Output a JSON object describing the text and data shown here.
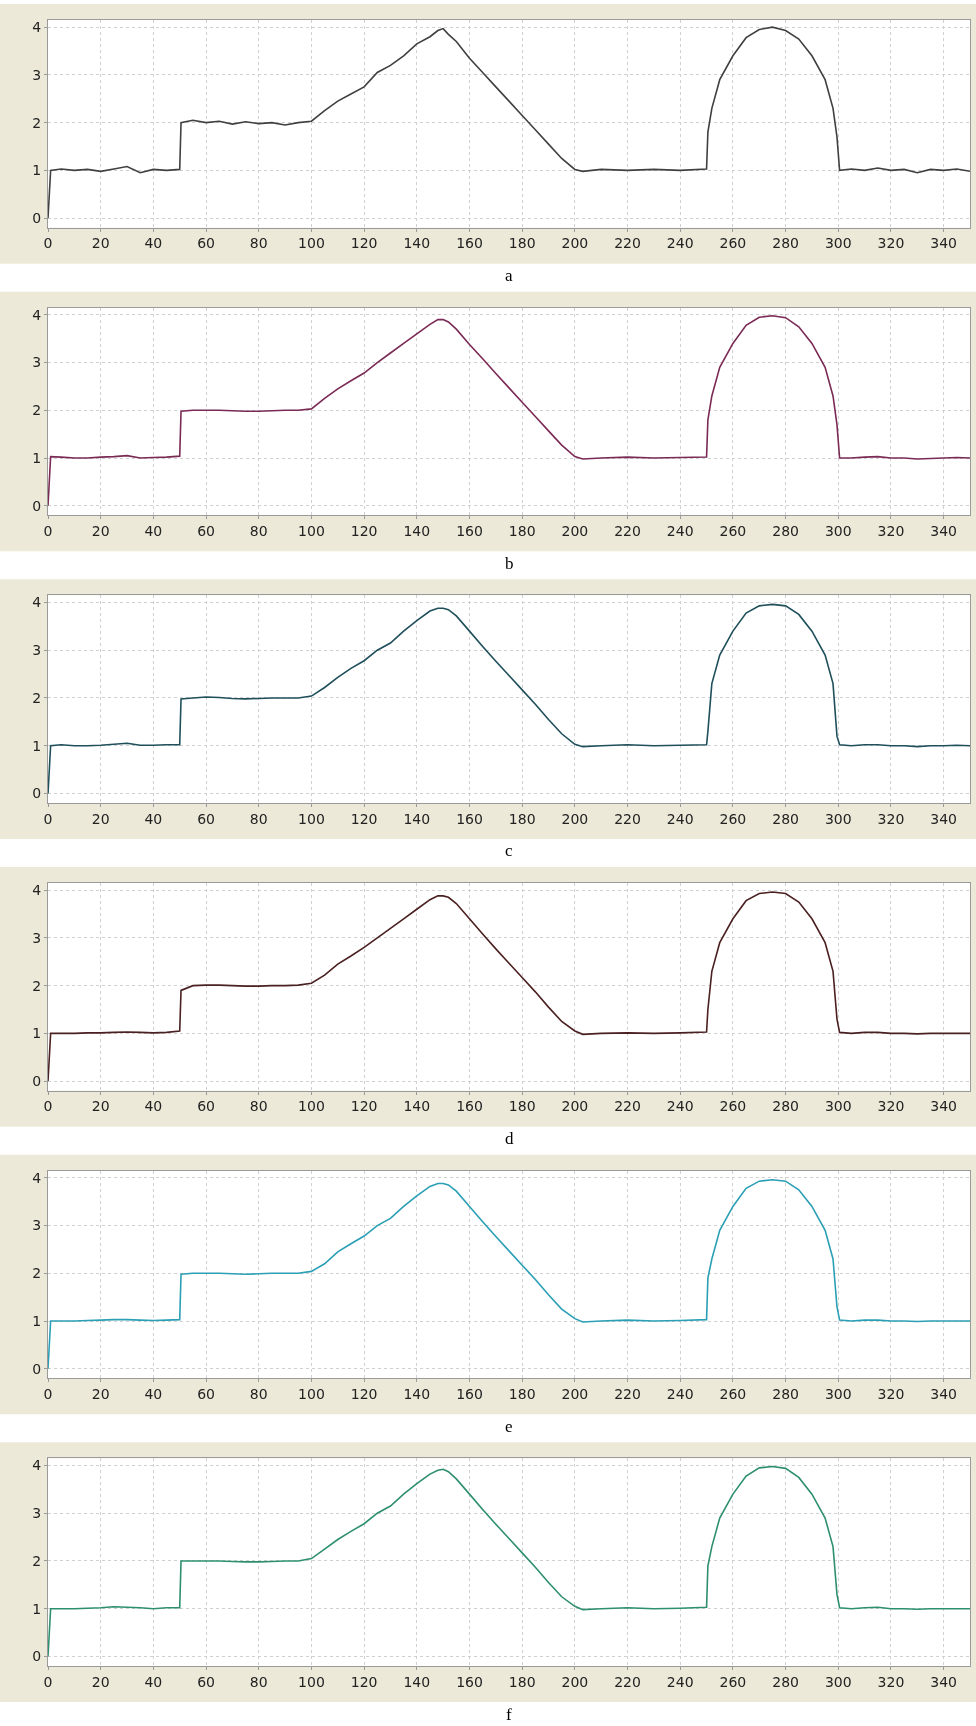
{
  "chart_data": [
    {
      "type": "line",
      "xlabel": "a",
      "x": [
        0,
        1,
        5,
        10,
        15,
        20,
        25,
        30,
        35,
        40,
        45,
        50,
        50.5,
        55,
        60,
        65,
        70,
        75,
        80,
        85,
        90,
        95,
        100,
        105,
        110,
        115,
        120,
        125,
        130,
        135,
        140,
        145,
        148,
        150,
        152,
        155,
        160,
        165,
        170,
        175,
        180,
        185,
        190,
        195,
        200,
        203,
        210,
        220,
        230,
        240,
        250,
        250.5,
        252,
        255,
        260,
        265,
        270,
        275,
        280,
        285,
        290,
        295,
        298,
        299.5,
        300.5,
        305,
        310,
        315,
        320,
        325,
        330,
        335,
        340,
        345,
        350
      ],
      "series": [
        {
          "color": "#404040",
          "values": [
            0,
            1.0,
            1.03,
            1.0,
            1.02,
            0.98,
            1.03,
            1.08,
            0.95,
            1.02,
            1.0,
            1.02,
            2.0,
            2.05,
            2.0,
            2.03,
            1.97,
            2.02,
            1.98,
            2.0,
            1.95,
            2.0,
            2.03,
            2.25,
            2.45,
            2.6,
            2.75,
            3.05,
            3.2,
            3.4,
            3.65,
            3.8,
            3.93,
            3.97,
            3.85,
            3.7,
            3.35,
            3.05,
            2.75,
            2.45,
            2.15,
            1.85,
            1.55,
            1.25,
            1.02,
            0.98,
            1.02,
            1.0,
            1.02,
            1.0,
            1.03,
            1.8,
            2.3,
            2.9,
            3.4,
            3.78,
            3.95,
            4.0,
            3.93,
            3.75,
            3.4,
            2.9,
            2.3,
            1.7,
            1.0,
            1.03,
            1.0,
            1.05,
            1.0,
            1.02,
            0.95,
            1.02,
            1.0,
            1.03,
            0.98
          ]
        }
      ],
      "xlim": [
        0,
        350
      ],
      "ylim": [
        -0.2,
        4.15
      ],
      "xticks": [
        0,
        20,
        40,
        60,
        80,
        100,
        120,
        140,
        160,
        180,
        200,
        220,
        240,
        260,
        280,
        300,
        320,
        340
      ],
      "yticks": [
        0,
        1,
        2,
        3,
        4
      ],
      "grid": true
    },
    {
      "type": "line",
      "xlabel": "b",
      "x": [
        0,
        1,
        5,
        10,
        15,
        20,
        25,
        30,
        35,
        40,
        45,
        50,
        50.5,
        55,
        60,
        65,
        70,
        75,
        80,
        85,
        90,
        95,
        100,
        105,
        110,
        115,
        120,
        125,
        130,
        135,
        140,
        145,
        148,
        150,
        152,
        155,
        160,
        165,
        170,
        175,
        180,
        185,
        190,
        195,
        200,
        203,
        210,
        220,
        230,
        240,
        250,
        250.5,
        252,
        255,
        260,
        265,
        270,
        275,
        280,
        285,
        290,
        295,
        298,
        299.5,
        300.5,
        305,
        310,
        315,
        320,
        325,
        330,
        335,
        340,
        345,
        350
      ],
      "series": [
        {
          "color": "#7a2a55",
          "values": [
            0,
            1.03,
            1.02,
            1.0,
            1.0,
            1.02,
            1.03,
            1.05,
            1.0,
            1.01,
            1.02,
            1.04,
            1.98,
            2.0,
            2.0,
            2.0,
            1.99,
            1.98,
            1.98,
            1.99,
            2.0,
            2.0,
            2.03,
            2.25,
            2.45,
            2.62,
            2.78,
            3.0,
            3.2,
            3.4,
            3.6,
            3.8,
            3.9,
            3.9,
            3.85,
            3.7,
            3.38,
            3.08,
            2.77,
            2.47,
            2.17,
            1.87,
            1.57,
            1.27,
            1.03,
            0.98,
            1.0,
            1.02,
            1.0,
            1.01,
            1.02,
            1.8,
            2.3,
            2.9,
            3.4,
            3.78,
            3.95,
            3.98,
            3.94,
            3.75,
            3.4,
            2.9,
            2.3,
            1.7,
            1.0,
            1.0,
            1.02,
            1.03,
            1.0,
            1.0,
            0.98,
            0.99,
            1.0,
            1.01,
            1.0
          ]
        }
      ],
      "xlim": [
        0,
        350
      ],
      "ylim": [
        -0.2,
        4.15
      ],
      "xticks": [
        0,
        20,
        40,
        60,
        80,
        100,
        120,
        140,
        160,
        180,
        200,
        220,
        240,
        260,
        280,
        300,
        320,
        340
      ],
      "yticks": [
        0,
        1,
        2,
        3,
        4
      ],
      "grid": true
    },
    {
      "type": "line",
      "xlabel": "c",
      "x": [
        0,
        1,
        5,
        10,
        15,
        20,
        25,
        30,
        35,
        40,
        45,
        50,
        50.5,
        55,
        60,
        65,
        70,
        75,
        80,
        85,
        90,
        95,
        100,
        105,
        110,
        115,
        120,
        125,
        130,
        135,
        140,
        145,
        148,
        150,
        152,
        155,
        160,
        165,
        170,
        175,
        180,
        185,
        190,
        195,
        200,
        203,
        210,
        220,
        230,
        240,
        250,
        250.5,
        252,
        255,
        260,
        265,
        270,
        275,
        280,
        285,
        290,
        295,
        298,
        299.5,
        300.5,
        305,
        310,
        315,
        320,
        325,
        330,
        335,
        340,
        345,
        350
      ],
      "series": [
        {
          "color": "#1f4f5a",
          "values": [
            0,
            1.0,
            1.02,
            1.0,
            1.0,
            1.01,
            1.03,
            1.05,
            1.01,
            1.01,
            1.02,
            1.02,
            1.98,
            2.0,
            2.02,
            2.01,
            1.99,
            1.98,
            1.99,
            2.0,
            2.0,
            2.0,
            2.04,
            2.22,
            2.43,
            2.62,
            2.78,
            3.0,
            3.15,
            3.4,
            3.62,
            3.82,
            3.88,
            3.88,
            3.85,
            3.72,
            3.4,
            3.08,
            2.77,
            2.47,
            2.17,
            1.87,
            1.55,
            1.25,
            1.03,
            0.98,
            1.0,
            1.02,
            1.0,
            1.01,
            1.02,
            1.3,
            2.3,
            2.9,
            3.4,
            3.78,
            3.93,
            3.96,
            3.93,
            3.75,
            3.4,
            2.9,
            2.3,
            1.2,
            1.02,
            1.0,
            1.02,
            1.02,
            1.0,
            1.0,
            0.98,
            1.0,
            1.0,
            1.01,
            1.0
          ]
        }
      ],
      "xlim": [
        0,
        350
      ],
      "ylim": [
        -0.2,
        4.15
      ],
      "xticks": [
        0,
        20,
        40,
        60,
        80,
        100,
        120,
        140,
        160,
        180,
        200,
        220,
        240,
        260,
        280,
        300,
        320,
        340
      ],
      "yticks": [
        0,
        1,
        2,
        3,
        4
      ],
      "grid": true
    },
    {
      "type": "line",
      "xlabel": "d",
      "x": [
        0,
        1,
        5,
        10,
        15,
        20,
        25,
        30,
        35,
        40,
        45,
        50,
        50.5,
        55,
        60,
        65,
        70,
        75,
        80,
        85,
        90,
        95,
        100,
        105,
        110,
        115,
        120,
        125,
        130,
        135,
        140,
        145,
        148,
        150,
        152,
        155,
        160,
        165,
        170,
        175,
        180,
        185,
        190,
        195,
        200,
        203,
        210,
        220,
        230,
        240,
        250,
        250.5,
        252,
        255,
        260,
        265,
        270,
        275,
        280,
        285,
        290,
        295,
        298,
        299.5,
        300.5,
        305,
        310,
        315,
        320,
        325,
        330,
        335,
        340,
        345,
        350
      ],
      "series": [
        {
          "color": "#4a2020",
          "values": [
            0,
            1.0,
            1.0,
            1.0,
            1.01,
            1.01,
            1.02,
            1.03,
            1.02,
            1.01,
            1.02,
            1.05,
            1.9,
            2.0,
            2.01,
            2.01,
            2.0,
            1.99,
            1.99,
            2.0,
            2.0,
            2.01,
            2.05,
            2.22,
            2.45,
            2.62,
            2.8,
            3.0,
            3.2,
            3.4,
            3.6,
            3.8,
            3.88,
            3.88,
            3.85,
            3.72,
            3.4,
            3.08,
            2.77,
            2.47,
            2.17,
            1.87,
            1.55,
            1.25,
            1.05,
            0.98,
            1.0,
            1.01,
            1.0,
            1.01,
            1.03,
            1.5,
            2.3,
            2.9,
            3.4,
            3.78,
            3.93,
            3.96,
            3.93,
            3.75,
            3.4,
            2.9,
            2.3,
            1.3,
            1.02,
            1.0,
            1.02,
            1.02,
            1.0,
            1.0,
            0.99,
            1.0,
            1.0,
            1.0,
            1.0
          ]
        }
      ],
      "xlim": [
        0,
        350
      ],
      "ylim": [
        -0.2,
        4.15
      ],
      "xticks": [
        0,
        20,
        40,
        60,
        80,
        100,
        120,
        140,
        160,
        180,
        200,
        220,
        240,
        260,
        280,
        300,
        320,
        340
      ],
      "yticks": [
        0,
        1,
        2,
        3,
        4
      ],
      "grid": true
    },
    {
      "type": "line",
      "xlabel": "e",
      "x": [
        0,
        1,
        5,
        10,
        15,
        20,
        25,
        30,
        35,
        40,
        45,
        50,
        50.5,
        55,
        60,
        65,
        70,
        75,
        80,
        85,
        90,
        95,
        100,
        105,
        110,
        115,
        120,
        125,
        130,
        135,
        140,
        145,
        148,
        150,
        152,
        155,
        160,
        165,
        170,
        175,
        180,
        185,
        190,
        195,
        200,
        203,
        210,
        220,
        230,
        240,
        250,
        250.5,
        252,
        255,
        260,
        265,
        270,
        275,
        280,
        285,
        290,
        295,
        298,
        299.5,
        300.5,
        305,
        310,
        315,
        320,
        325,
        330,
        335,
        340,
        345,
        350
      ],
      "series": [
        {
          "color": "#2a9fb5",
          "values": [
            0,
            1.0,
            1.0,
            1.0,
            1.01,
            1.02,
            1.03,
            1.03,
            1.02,
            1.01,
            1.02,
            1.03,
            1.98,
            2.0,
            2.0,
            2.0,
            1.99,
            1.98,
            1.99,
            2.0,
            2.0,
            2.0,
            2.04,
            2.2,
            2.45,
            2.62,
            2.78,
            3.0,
            3.15,
            3.4,
            3.62,
            3.82,
            3.88,
            3.88,
            3.85,
            3.72,
            3.4,
            3.08,
            2.77,
            2.47,
            2.17,
            1.87,
            1.55,
            1.25,
            1.05,
            0.98,
            1.0,
            1.02,
            1.0,
            1.01,
            1.03,
            1.9,
            2.3,
            2.9,
            3.4,
            3.78,
            3.93,
            3.96,
            3.93,
            3.75,
            3.4,
            2.9,
            2.3,
            1.3,
            1.02,
            1.0,
            1.02,
            1.02,
            1.0,
            1.0,
            0.99,
            1.0,
            1.0,
            1.0,
            1.0
          ]
        }
      ],
      "xlim": [
        0,
        350
      ],
      "ylim": [
        -0.2,
        4.15
      ],
      "xticks": [
        0,
        20,
        40,
        60,
        80,
        100,
        120,
        140,
        160,
        180,
        200,
        220,
        240,
        260,
        280,
        300,
        320,
        340
      ],
      "yticks": [
        0,
        1,
        2,
        3,
        4
      ],
      "grid": true
    },
    {
      "type": "line",
      "xlabel": "f",
      "x": [
        0,
        1,
        5,
        10,
        15,
        20,
        25,
        30,
        35,
        40,
        45,
        50,
        50.5,
        55,
        60,
        65,
        70,
        75,
        80,
        85,
        90,
        95,
        100,
        105,
        110,
        115,
        120,
        125,
        130,
        135,
        140,
        145,
        148,
        150,
        152,
        155,
        160,
        165,
        170,
        175,
        180,
        185,
        190,
        195,
        200,
        203,
        210,
        220,
        230,
        240,
        250,
        250.5,
        252,
        255,
        260,
        265,
        270,
        275,
        280,
        285,
        290,
        295,
        298,
        299.5,
        300.5,
        305,
        310,
        315,
        320,
        325,
        330,
        335,
        340,
        345,
        350
      ],
      "series": [
        {
          "color": "#2e8f70",
          "values": [
            0,
            1.0,
            1.0,
            1.0,
            1.01,
            1.02,
            1.04,
            1.03,
            1.02,
            1.0,
            1.02,
            1.02,
            2.0,
            2.0,
            2.0,
            2.0,
            1.99,
            1.98,
            1.98,
            1.99,
            2.0,
            2.0,
            2.05,
            2.25,
            2.45,
            2.62,
            2.78,
            3.0,
            3.15,
            3.4,
            3.62,
            3.82,
            3.9,
            3.92,
            3.87,
            3.72,
            3.4,
            3.08,
            2.77,
            2.47,
            2.17,
            1.87,
            1.55,
            1.25,
            1.05,
            0.98,
            1.0,
            1.02,
            1.0,
            1.01,
            1.03,
            1.9,
            2.3,
            2.9,
            3.4,
            3.78,
            3.95,
            3.98,
            3.94,
            3.75,
            3.4,
            2.9,
            2.3,
            1.3,
            1.02,
            1.0,
            1.02,
            1.03,
            1.0,
            1.0,
            0.99,
            1.0,
            1.0,
            1.0,
            1.0
          ]
        }
      ],
      "xlim": [
        0,
        350
      ],
      "ylim": [
        -0.2,
        4.15
      ],
      "xticks": [
        0,
        20,
        40,
        60,
        80,
        100,
        120,
        140,
        160,
        180,
        200,
        220,
        240,
        260,
        280,
        300,
        320,
        340
      ],
      "yticks": [
        0,
        1,
        2,
        3,
        4
      ],
      "grid": true
    }
  ]
}
